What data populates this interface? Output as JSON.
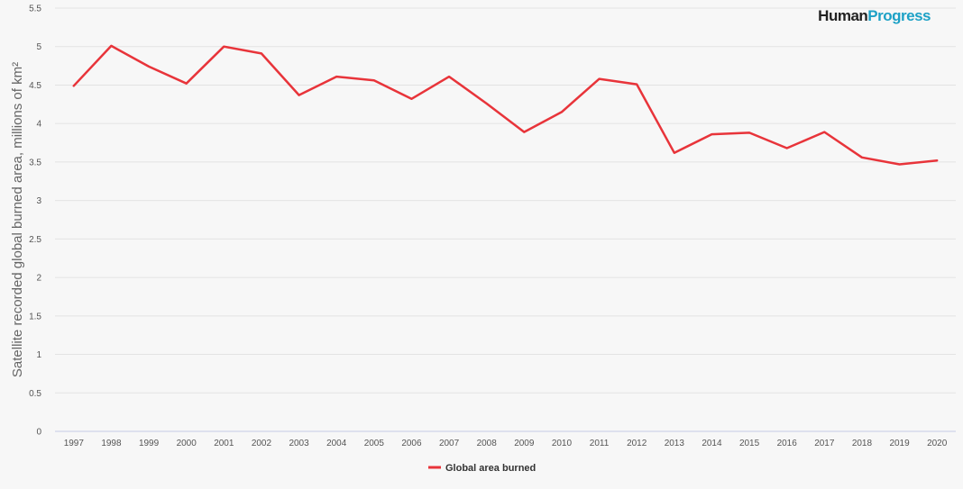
{
  "brand": {
    "part1": "Human",
    "part2": "Progress"
  },
  "colors": {
    "series": "#e8343a",
    "axis": "#c5cbe6",
    "brand_accent": "#1da1c6"
  },
  "chart_data": {
    "type": "line",
    "title": "",
    "xlabel": "",
    "ylabel": "Satellite recorded global burned area, millions of km²",
    "ylim": [
      0,
      5.5
    ],
    "yticks": [
      "0",
      "0.5",
      "1",
      "1.5",
      "2",
      "2.5",
      "3",
      "3.5",
      "4",
      "4.5",
      "5",
      "5.5"
    ],
    "grid": true,
    "legend_position": "bottom-center",
    "categories": [
      "1997",
      "1998",
      "1999",
      "2000",
      "2001",
      "2002",
      "2003",
      "2004",
      "2005",
      "2006",
      "2007",
      "2008",
      "2009",
      "2010",
      "2011",
      "2012",
      "2013",
      "2014",
      "2015",
      "2016",
      "2017",
      "2018",
      "2019",
      "2020"
    ],
    "series": [
      {
        "name": "Global area burned",
        "color": "#e8343a",
        "values": [
          4.49,
          5.01,
          4.74,
          4.52,
          5.0,
          4.91,
          4.37,
          4.61,
          4.56,
          4.32,
          4.61,
          4.26,
          3.89,
          4.15,
          4.58,
          4.51,
          3.62,
          3.86,
          3.88,
          3.68,
          3.89,
          3.56,
          3.47,
          3.52
        ]
      }
    ]
  }
}
